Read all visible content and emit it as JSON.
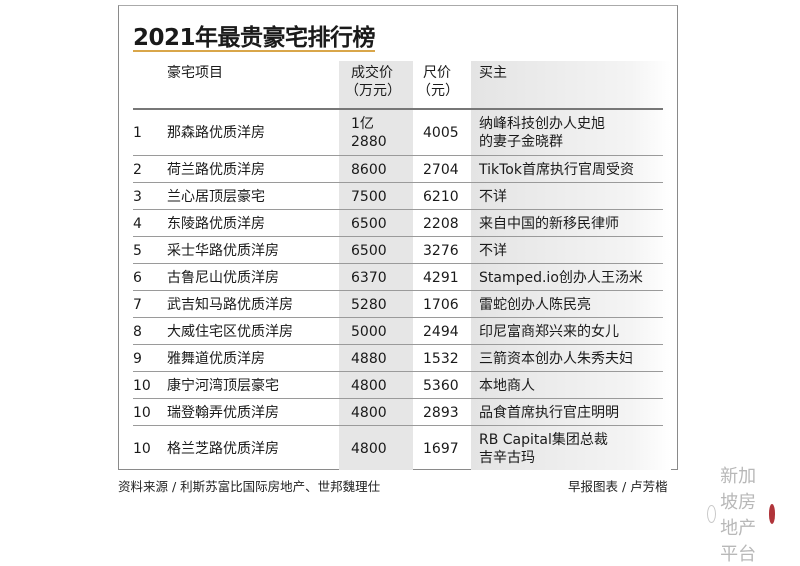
{
  "title": "2021年最贵豪宅排行榜",
  "headers": {
    "project": "豪宅项目",
    "price_l1": "成交价",
    "price_l2": "（万元）",
    "sqft_l1": "尺价",
    "sqft_l2": "（元）",
    "buyer": "买主"
  },
  "rows": [
    {
      "rank": "1",
      "name": "那森路优质洋房",
      "price_l1": "1亿",
      "price_l2": "2880",
      "sqft": "4005",
      "buyer_l1": "纳峰科技创办人史旭",
      "buyer_l2": "的妻子金晓群"
    },
    {
      "rank": "2",
      "name": "荷兰路优质洋房",
      "price_l1": "8600",
      "sqft": "2704",
      "buyer_l1": "TikTok首席执行官周受资"
    },
    {
      "rank": "3",
      "name": "兰心居顶层豪宅",
      "price_l1": "7500",
      "sqft": "6210",
      "buyer_l1": "不详"
    },
    {
      "rank": "4",
      "name": "东陵路优质洋房",
      "price_l1": "6500",
      "sqft": "2208",
      "buyer_l1": "来自中国的新移民律师"
    },
    {
      "rank": "5",
      "name": "采士华路优质洋房",
      "price_l1": "6500",
      "sqft": "3276",
      "buyer_l1": "不详"
    },
    {
      "rank": "6",
      "name": "古鲁尼山优质洋房",
      "price_l1": "6370",
      "sqft": "4291",
      "buyer_l1": "Stamped.io创办人王汤米"
    },
    {
      "rank": "7",
      "name": "武吉知马路优质洋房",
      "price_l1": "5280",
      "sqft": "1706",
      "buyer_l1": "雷蛇创办人陈民亮"
    },
    {
      "rank": "8",
      "name": "大威住宅区优质洋房",
      "price_l1": "5000",
      "sqft": "2494",
      "buyer_l1": "印尼富商郑兴来的女儿"
    },
    {
      "rank": "9",
      "name": "雅舞道优质洋房",
      "price_l1": "4880",
      "sqft": "1532",
      "buyer_l1": "三箭资本创办人朱秀夫妇"
    },
    {
      "rank": "10",
      "name": "康宁河湾顶层豪宅",
      "price_l1": "4800",
      "sqft": "5360",
      "buyer_l1": "本地商人"
    },
    {
      "rank": "10",
      "name": "瑞登翰弄优质洋房",
      "price_l1": "4800",
      "sqft": "2893",
      "buyer_l1": "品食首席执行官庄明明"
    },
    {
      "rank": "10",
      "name": "格兰芝路优质洋房",
      "price_l1": "4800",
      "sqft": "1697",
      "buyer_l1": "RB Capital集团总裁",
      "buyer_l2": "吉辛古玛"
    }
  ],
  "footer": {
    "source": "资料来源 / 利斯苏富比国际房地产、世邦魏理仕",
    "credit": "早报图表 / 卢芳楷"
  },
  "watermark": {
    "text": "新加坡房地产平台",
    "icon": "wechat-icon"
  },
  "colors": {
    "accent_rule": "#d9a64a",
    "column_shade": "#e6e6e6",
    "logo": "#b0343a"
  }
}
